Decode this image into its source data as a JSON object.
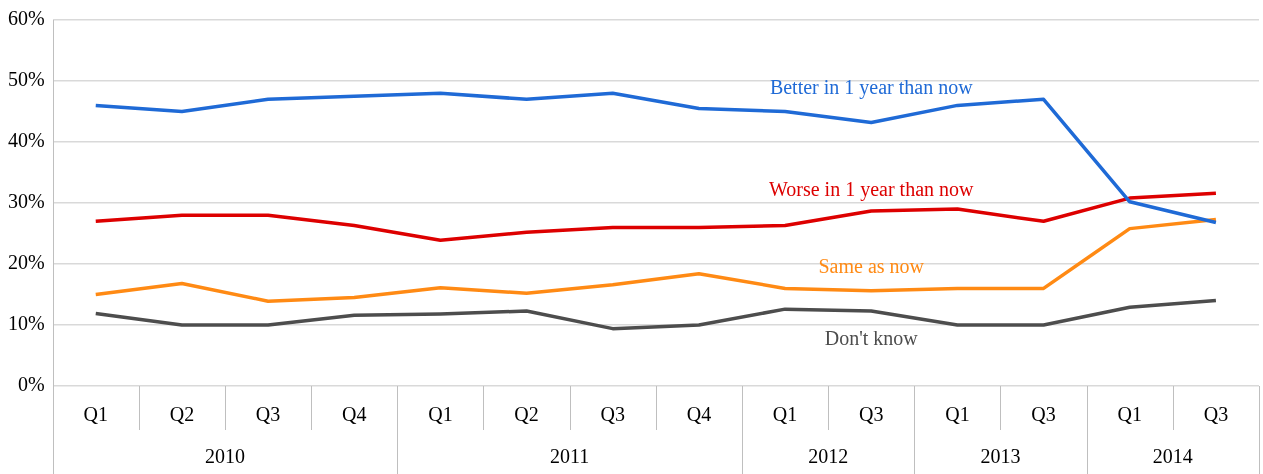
{
  "chart_data": {
    "type": "line",
    "categories": [
      "Q1",
      "Q2",
      "Q3",
      "Q4",
      "Q1",
      "Q2",
      "Q3",
      "Q4",
      "Q1",
      "Q3",
      "Q1",
      "Q3",
      "Q1",
      "Q3"
    ],
    "annotations": [
      "2010",
      "2011",
      "2012",
      "2013",
      "2014"
    ],
    "series": [
      {
        "name": "Better in 1 year than now",
        "color": "#1f6ad6",
        "values": [
          46,
          45,
          47,
          47.5,
          48,
          47,
          48,
          45.5,
          45,
          43.2,
          46,
          47,
          30.2,
          26.8
        ]
      },
      {
        "name": "Worse in 1 year than now",
        "color": "#dd0000",
        "values": [
          27,
          28,
          28,
          26.3,
          23.9,
          25.2,
          26,
          26,
          26.3,
          28.7,
          29,
          27,
          30.8,
          31.6
        ]
      },
      {
        "name": "Same as now",
        "color": "#ff8a14",
        "values": [
          15,
          16.8,
          13.9,
          14.5,
          16.1,
          15.2,
          16.6,
          18.4,
          16,
          15.6,
          16,
          16,
          25.8,
          27.3
        ]
      },
      {
        "name": "Don't know",
        "color": "#4d4d4d",
        "values": [
          11.9,
          10,
          10,
          11.6,
          11.8,
          12.3,
          9.4,
          10,
          12.6,
          12.3,
          10,
          10,
          12.9,
          14
        ]
      }
    ],
    "ylim": [
      0,
      60
    ],
    "yticks": [
      {
        "value": 0,
        "label": "0%"
      },
      {
        "value": 10,
        "label": "10%"
      },
      {
        "value": 20,
        "label": "20%"
      },
      {
        "value": 30,
        "label": "30%"
      },
      {
        "value": 40,
        "label": "40%"
      },
      {
        "value": 50,
        "label": "50%"
      },
      {
        "value": 60,
        "label": "60%"
      }
    ],
    "grid": "y",
    "legend": false,
    "marker": "none",
    "line_style": "solid"
  }
}
